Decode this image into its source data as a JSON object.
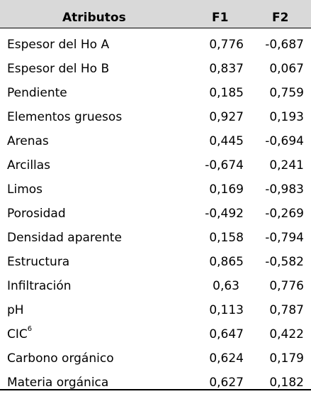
{
  "headers": {
    "attr": "Atributos",
    "f1": "F1",
    "f2": "F2"
  },
  "rows": [
    {
      "attr": "Espesor del Ho A",
      "f1": "0,776",
      "f2": "-0,687"
    },
    {
      "attr": "Espesor del Ho B",
      "f1": "0,837",
      "f2": "0,067"
    },
    {
      "attr": "Pendiente",
      "f1": "0,185",
      "f2": "0,759"
    },
    {
      "attr": "Elementos gruesos",
      "f1": "0,927",
      "f2": "0,193"
    },
    {
      "attr": "Arenas",
      "f1": "0,445",
      "f2": "-0,694"
    },
    {
      "attr": "Arcillas",
      "f1": "-0,674",
      "f2": "0,241"
    },
    {
      "attr": "Limos",
      "f1": "0,169",
      "f2": "-0,983"
    },
    {
      "attr": "Porosidad",
      "f1": "-0,492",
      "f2": "-0,269"
    },
    {
      "attr": "Densidad aparente",
      "f1": "0,158",
      "f2": "-0,794"
    },
    {
      "attr": "Estructura",
      "f1": "0,865",
      "f2": "-0,582"
    },
    {
      "attr": "Infiltración",
      "f1": "0,63",
      "f2": "0,776"
    },
    {
      "attr": "pH",
      "f1": "0,113",
      "f2": "0,787"
    },
    {
      "attr": "CIC",
      "attr_sup": "6",
      "f1": "0,647",
      "f2": "0,422"
    },
    {
      "attr": "Carbono orgánico",
      "f1": "0,624",
      "f2": "0,179"
    },
    {
      "attr": "Materia orgánica",
      "f1": "0,627",
      "f2": "0,182"
    }
  ]
}
